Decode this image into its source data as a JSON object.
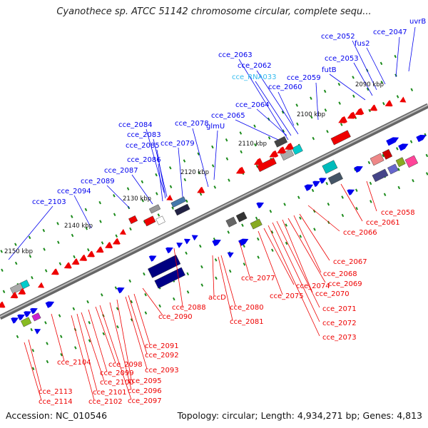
{
  "title": "Cyanothece sp. ATCC 51142 chromosome circular, complete sequ...",
  "footer": {
    "accession": "Accession: NC_010546",
    "topology": "Topology: circular; Length: 4,934,271 bp; Genes: 4,813"
  },
  "colors": {
    "forward_gene": "#0000ee",
    "reverse_gene": "#ee0000",
    "rna_label": "#33bbee",
    "backbone": "#888888",
    "tick": "#1a8a1a"
  },
  "kbp_ticks": [
    "2090 kbp",
    "2100 kbp",
    "2110 kbp",
    "2120 kbp",
    "2130 kbp",
    "2140 kbp",
    "2150 kbp"
  ],
  "forward_labels": [
    "uvrB",
    "cce_2047",
    "fus2",
    "cce_2052",
    "cce_2053",
    "futB",
    "cce_2059",
    "cce_2060",
    "cce_2063",
    "cce_2062",
    "cce_RNA033",
    "cce_2064",
    "cce_2065",
    "glmU",
    "cce_2078",
    "cce_2079",
    "cce_2084",
    "cce_2083",
    "cce_2085",
    "cce_2086",
    "cce_2087",
    "cce_2089",
    "cce_2094",
    "cce_2103"
  ],
  "reverse_labels": [
    "cce_2058",
    "cce_2061",
    "cce_2066",
    "cce_2067",
    "cce_2068",
    "cce_2069",
    "cce_2070",
    "cce_2071",
    "cce_2072",
    "cce_2073",
    "cce_2074",
    "cce_2075",
    "cce_2077",
    "cce_2080",
    "cce_2081",
    "accD",
    "cce_2088",
    "cce_2090",
    "cce_2091",
    "cce_2092",
    "cce_2093",
    "cce_2095",
    "cce_2096",
    "cce_2097",
    "cce_2098",
    "cce_2099",
    "cce_2100",
    "cce_2101",
    "cce_2102",
    "cce_2104",
    "cce_2113",
    "cce_2114"
  ]
}
